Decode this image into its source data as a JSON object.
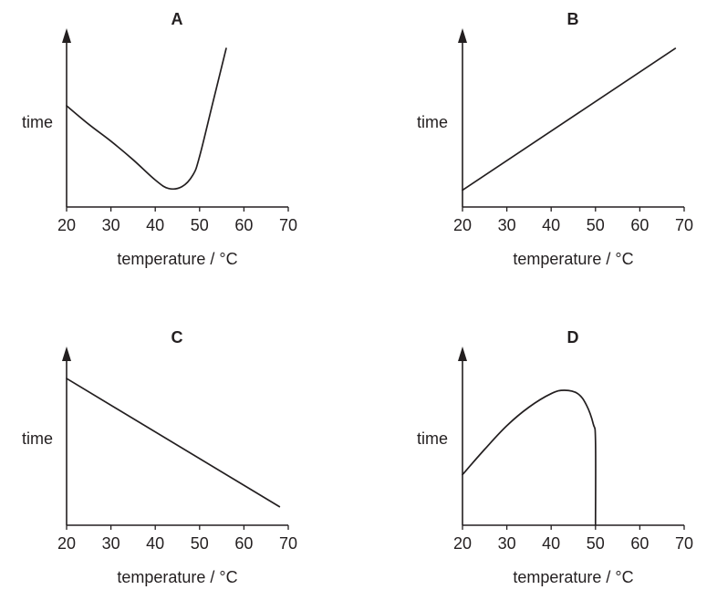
{
  "chart_data": [
    {
      "type": "line",
      "title": "A",
      "xlabel": "temperature / °C",
      "ylabel": "time",
      "x_ticks": [
        "20",
        "30",
        "40",
        "50",
        "60",
        "70"
      ],
      "xlim": [
        20,
        70
      ],
      "ylim": [
        0,
        10
      ],
      "series": [
        {
          "x": [
            20,
            25,
            30,
            35,
            40,
            43,
            46,
            48.5,
            50,
            53,
            56
          ],
          "y": [
            6.0,
            4.9,
            3.9,
            2.8,
            1.6,
            1.1,
            1.2,
            1.9,
            3.0,
            6.2,
            9.4
          ]
        }
      ]
    },
    {
      "type": "line",
      "title": "B",
      "xlabel": "temperature / °C",
      "ylabel": "time",
      "x_ticks": [
        "20",
        "30",
        "40",
        "50",
        "60",
        "70"
      ],
      "xlim": [
        20,
        70
      ],
      "ylim": [
        0,
        10
      ],
      "series": [
        {
          "x": [
            20,
            68
          ],
          "y": [
            1.0,
            9.4
          ]
        }
      ]
    },
    {
      "type": "line",
      "title": "C",
      "xlabel": "temperature / °C",
      "ylabel": "time",
      "x_ticks": [
        "20",
        "30",
        "40",
        "50",
        "60",
        "70"
      ],
      "xlim": [
        20,
        70
      ],
      "ylim": [
        0,
        10
      ],
      "series": [
        {
          "x": [
            20,
            68
          ],
          "y": [
            8.7,
            1.1
          ]
        }
      ]
    },
    {
      "type": "line",
      "title": "D",
      "xlabel": "temperature / °C",
      "ylabel": "time",
      "x_ticks": [
        "20",
        "30",
        "40",
        "50",
        "60",
        "70"
      ],
      "xlim": [
        20,
        70
      ],
      "ylim": [
        0,
        10
      ],
      "series": [
        {
          "x": [
            20,
            25,
            30,
            35,
            40,
            43,
            46,
            48,
            49.5,
            50,
            50
          ],
          "y": [
            3.0,
            4.5,
            5.9,
            7.0,
            7.8,
            8.0,
            7.8,
            7.1,
            6.0,
            5.0,
            0
          ]
        }
      ]
    }
  ]
}
